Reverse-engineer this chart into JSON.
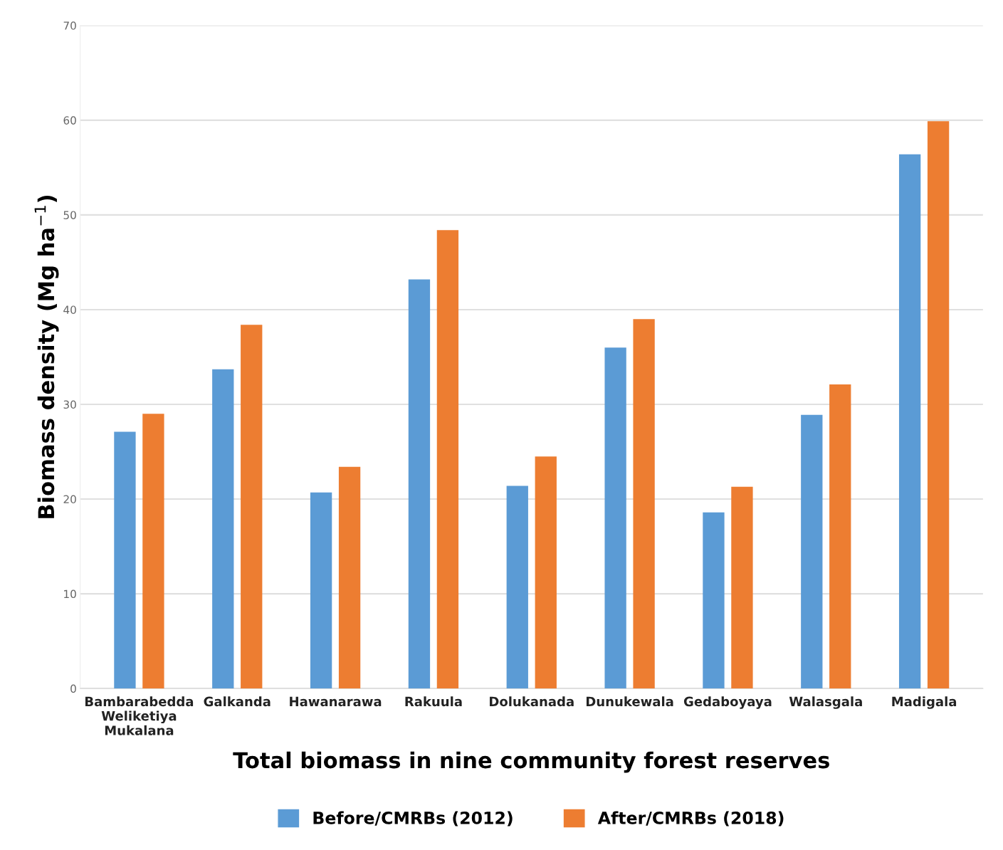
{
  "chart_data": {
    "type": "bar",
    "xlabel": "Total biomass in nine community forest reserves",
    "ylabel": "Biomass density (Mg ha$^{−1}$)",
    "categories": [
      "Bambarabedda\nWeliketiya\nMukalana",
      "Galkanda",
      "Hawanarawa",
      "Rakuula",
      "Dolukanada",
      "Dunukewala",
      "Gedaboyaya",
      "Walasgala",
      "Madigala"
    ],
    "series": [
      {
        "name": "Before/CMRBs (2012)",
        "color": "#5b9bd5",
        "values": [
          27.1,
          33.7,
          20.7,
          43.2,
          21.4,
          36.0,
          18.6,
          28.9,
          56.4
        ]
      },
      {
        "name": "After/CMRBs (2018)",
        "color": "#ed7d31",
        "values": [
          29.0,
          38.4,
          23.4,
          48.4,
          24.5,
          39.0,
          21.3,
          32.1,
          59.9
        ]
      }
    ],
    "ylim": [
      0,
      70
    ],
    "yticks": [
      0,
      10,
      20,
      30,
      40,
      50,
      60,
      70
    ],
    "grid": "y",
    "legend": "bottom"
  }
}
